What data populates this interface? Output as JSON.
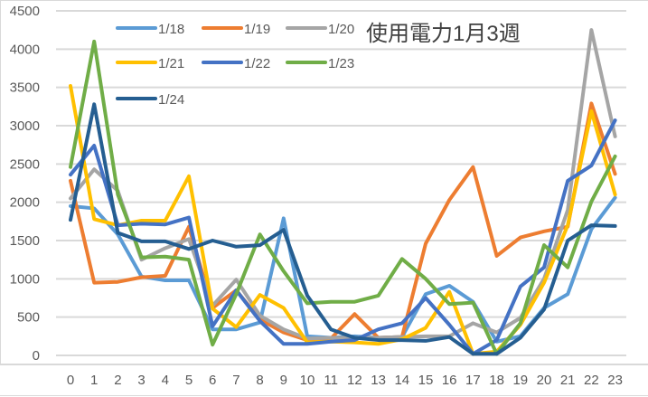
{
  "chart_data": {
    "type": "line",
    "title": "使用電力1月3週",
    "xlabel": "",
    "ylabel": "",
    "ylim": [
      0,
      4500
    ],
    "yticks": [
      0,
      500,
      1000,
      1500,
      2000,
      2500,
      3000,
      3500,
      4000,
      4500
    ],
    "grid": true,
    "legend_position": "top-left-inside",
    "categories": [
      "0",
      "1",
      "2",
      "3",
      "4",
      "5",
      "6",
      "7",
      "8",
      "9",
      "10",
      "11",
      "12",
      "13",
      "14",
      "15",
      "16",
      "17",
      "18",
      "19",
      "20",
      "21",
      "22",
      "23"
    ],
    "series": [
      {
        "name": "1/18",
        "color": "#5B9BD5",
        "values": [
          1950,
          1920,
          1580,
          1030,
          980,
          980,
          340,
          340,
          430,
          1790,
          250,
          230,
          250,
          230,
          240,
          800,
          910,
          700,
          180,
          250,
          620,
          800,
          1650,
          2060
        ]
      },
      {
        "name": "1/19",
        "color": "#ED7D31",
        "values": [
          2280,
          950,
          960,
          1020,
          1040,
          1680,
          620,
          850,
          470,
          300,
          200,
          220,
          540,
          230,
          240,
          1460,
          2030,
          2460,
          1300,
          1540,
          1620,
          1680,
          3290,
          2370
        ]
      },
      {
        "name": "1/20",
        "color": "#A5A5A5",
        "values": [
          2050,
          2430,
          2150,
          1250,
          1400,
          1520,
          650,
          990,
          520,
          340,
          220,
          230,
          230,
          230,
          240,
          250,
          250,
          420,
          300,
          490,
          1000,
          1900,
          4250,
          2860
        ]
      },
      {
        "name": "1/21",
        "color": "#FFC000",
        "values": [
          3520,
          1780,
          1700,
          1760,
          1760,
          2340,
          610,
          370,
          790,
          620,
          170,
          180,
          170,
          150,
          210,
          360,
          830,
          20,
          50,
          400,
          950,
          1700,
          3190,
          2100
        ]
      },
      {
        "name": "1/22",
        "color": "#4472C4",
        "values": [
          2360,
          2740,
          1700,
          1720,
          1710,
          1800,
          380,
          850,
          450,
          150,
          150,
          180,
          200,
          340,
          420,
          750,
          400,
          20,
          200,
          900,
          1150,
          2280,
          2480,
          3070
        ]
      },
      {
        "name": "1/23",
        "color": "#70AD47",
        "values": [
          2460,
          4100,
          2100,
          1280,
          1290,
          1250,
          140,
          800,
          1580,
          1100,
          680,
          700,
          700,
          780,
          1260,
          1000,
          670,
          690,
          20,
          420,
          1440,
          1150,
          2010,
          2600
        ]
      },
      {
        "name": "1/24",
        "color": "#255E91",
        "values": [
          1770,
          3280,
          1600,
          1490,
          1490,
          1390,
          1500,
          1420,
          1440,
          1640,
          780,
          340,
          230,
          200,
          200,
          190,
          240,
          20,
          20,
          230,
          600,
          1500,
          1700,
          1690
        ]
      }
    ]
  }
}
